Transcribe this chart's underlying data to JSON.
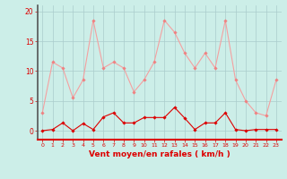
{
  "x": [
    0,
    1,
    2,
    3,
    4,
    5,
    6,
    7,
    8,
    9,
    10,
    11,
    12,
    13,
    14,
    15,
    16,
    17,
    18,
    19,
    20,
    21,
    22,
    23
  ],
  "rafales": [
    3,
    11.5,
    10.5,
    5.5,
    8.5,
    18.5,
    10.5,
    11.5,
    10.5,
    6.5,
    8.5,
    11.5,
    18.5,
    16.5,
    13,
    10.5,
    13,
    10.5,
    18.5,
    8.5,
    5,
    3,
    2.5,
    8.5
  ],
  "moyen": [
    0,
    0.2,
    1.3,
    0,
    1.2,
    0.2,
    2.3,
    3,
    1.3,
    1.3,
    2.2,
    2.2,
    2.2,
    3.9,
    2.1,
    0.2,
    1.3,
    1.3,
    3,
    0.2,
    0,
    0.2,
    0.2,
    0.2
  ],
  "bg_color": "#cceee8",
  "line_color_rafales": "#f4a0a0",
  "line_color_moyen": "#dd0000",
  "marker_color_rafales": "#f08080",
  "marker_color_moyen": "#dd0000",
  "grid_color": "#aacccc",
  "xlabel": "Vent moyen/en rafales ( km/h )",
  "xlabel_color": "#dd0000",
  "ytick_color": "#dd0000",
  "xtick_color": "#dd0000",
  "yticks": [
    0,
    5,
    10,
    15,
    20
  ],
  "ylim": [
    -1.5,
    21
  ],
  "xlim": [
    -0.5,
    23.5
  ]
}
